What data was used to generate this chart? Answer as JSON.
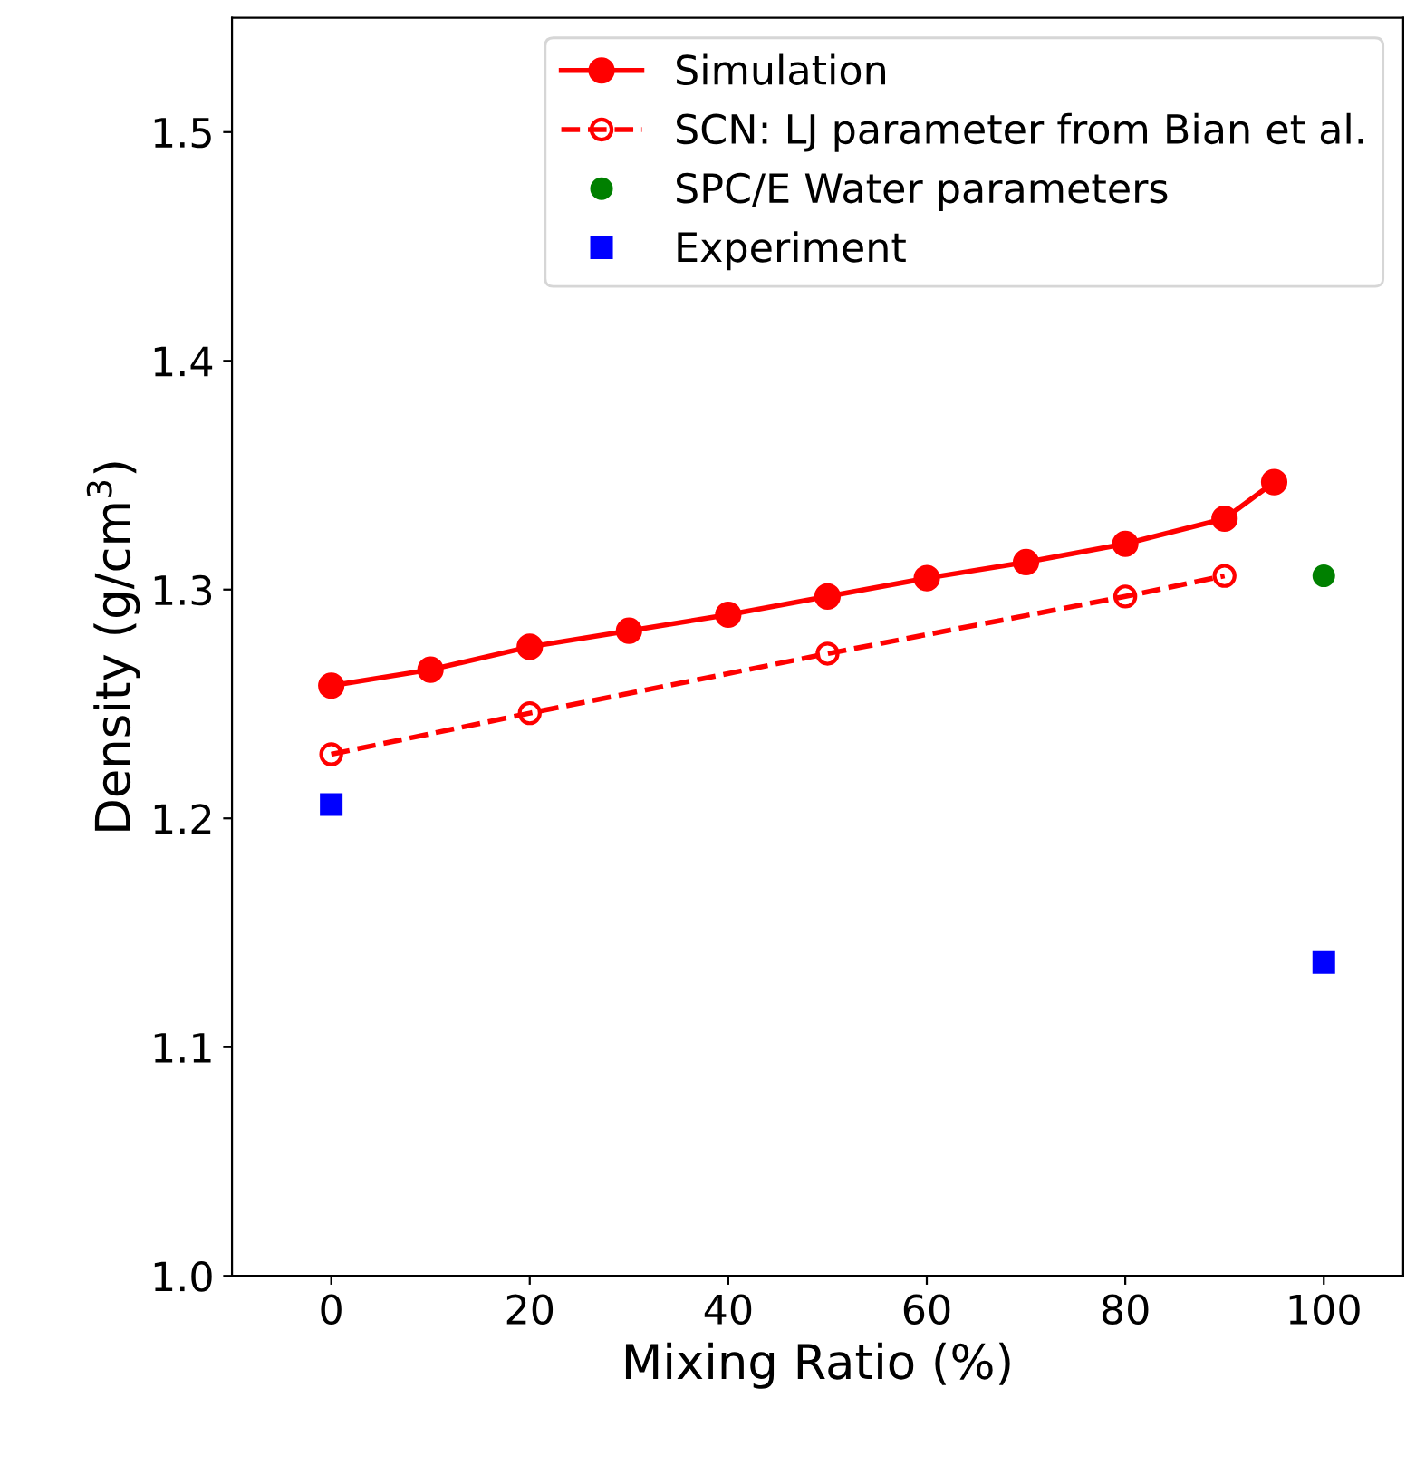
{
  "chart_data": {
    "type": "line",
    "xlabel": "Mixing Ratio (%)",
    "ylabel": "Density (g/cm$^{3}$)",
    "xlim": [
      -10,
      108
    ],
    "ylim": [
      1.0,
      1.55
    ],
    "xticks": [
      0,
      20,
      40,
      60,
      80,
      100
    ],
    "yticks": [
      {
        "value": 1,
        "label": "1.0"
      },
      1.1,
      1.2,
      1.3,
      1.4,
      1.5
    ],
    "grid": false,
    "legend": "top right",
    "series": [
      {
        "name": "Simulation",
        "color": "#ff0000",
        "marker": "circle",
        "line_style": "solid",
        "x": [
          0,
          10,
          20,
          30,
          40,
          50,
          60,
          70,
          80,
          90,
          95
        ],
        "values": [
          1.258,
          1.265,
          1.275,
          1.282,
          1.289,
          1.297,
          1.305,
          1.312,
          1.32,
          1.331,
          1.347
        ]
      },
      {
        "name": "SCN: LJ parameter from Bian et al.",
        "color": "#ff0000",
        "marker": "circle",
        "line_style": "dashed",
        "x": [
          0,
          20,
          50,
          80,
          90
        ],
        "values": [
          1.228,
          1.246,
          1.272,
          1.297,
          1.306
        ]
      },
      {
        "name": "SPC/E Water parameters",
        "type": "scatter",
        "color": "#008000",
        "marker": "circle",
        "x": [
          100
        ],
        "values": [
          1.306
        ]
      },
      {
        "name": "Experiment",
        "type": "scatter",
        "color": "#0000ff",
        "marker": "square",
        "x": [
          0,
          100
        ],
        "values": [
          1.206,
          1.137
        ]
      }
    ]
  }
}
